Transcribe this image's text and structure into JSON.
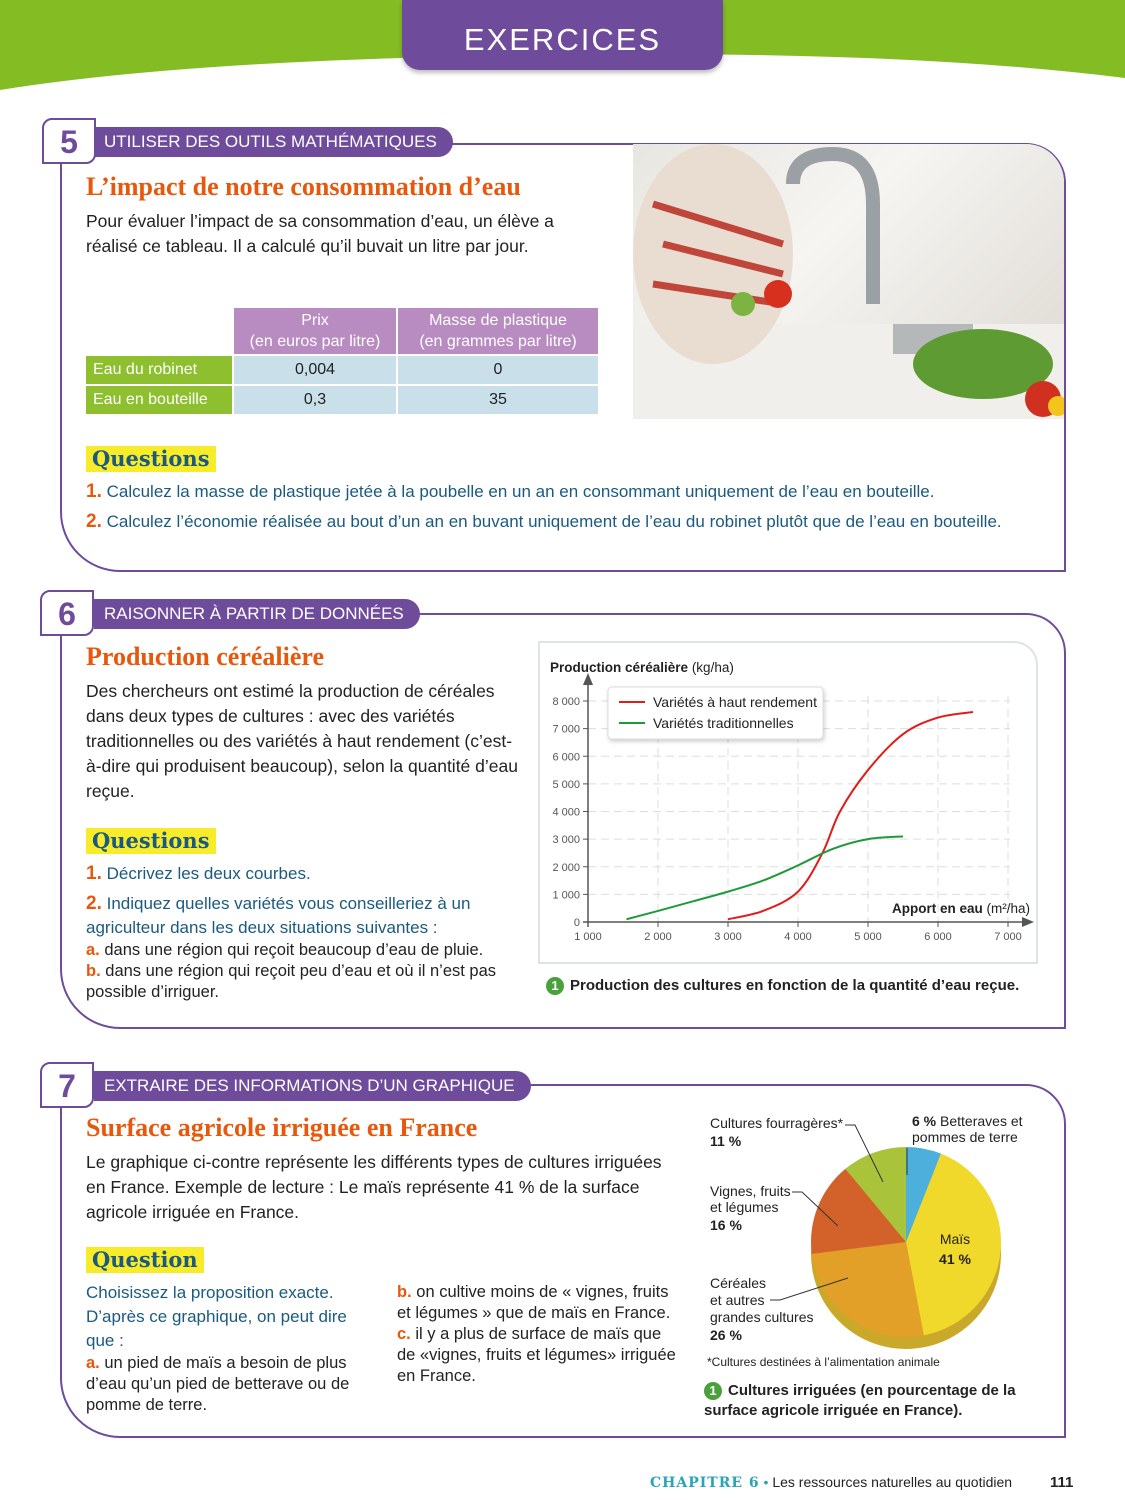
{
  "header": {
    "tab": "EXERCICES",
    "band_color": "#84bc24",
    "accent": "#6f4b9c"
  },
  "ex5": {
    "number": "5",
    "category": "UTILISER DES OUTILS MATHÉMATIQUES",
    "title": "L’impact de notre consommation d’eau",
    "intro": "Pour évaluer l’impact de sa consommation d’eau, un élève a réalisé ce tableau. Il a calculé qu’il buvait un litre par jour.",
    "table": {
      "headers": [
        "Prix\n(en euros par litre)",
        "Masse de plastique\n(en grammes par litre)"
      ],
      "rows": [
        {
          "label": "Eau du robinet",
          "values": [
            "0,004",
            "0"
          ]
        },
        {
          "label": "Eau en bouteille",
          "values": [
            "0,3",
            "35"
          ]
        }
      ]
    },
    "questions_label": "Questions",
    "questions": [
      {
        "n": "1.",
        "text": "Calculez la masse de plastique jetée à la poubelle en un an en consommant uniquement de l’eau en bouteille."
      },
      {
        "n": "2.",
        "text": "Calculez l’économie réalisée au bout d’un an en buvant uniquement de l’eau du robinet plutôt que de l’eau en bouteille."
      }
    ]
  },
  "ex6": {
    "number": "6",
    "category": "RAISONNER À PARTIR DE DONNÉES",
    "title": "Production céréalière",
    "intro": "Des chercheurs ont estimé la production de céréales dans deux types de cultures : avec des variétés traditionnelles ou des variétés à haut rendement (c’est-à-dire qui produisent beaucoup), selon la quantité d’eau reçue.",
    "questions_label": "Questions",
    "q1": {
      "n": "1.",
      "text": "Décrivez les deux courbes."
    },
    "q2": {
      "n": "2.",
      "text": "Indiquez quelles variétés vous conseilleriez à un agriculteur dans les deux situations suivantes :"
    },
    "qa": {
      "n": "a.",
      "text": "dans une région qui reçoit beaucoup d’eau de pluie."
    },
    "qb": {
      "n": "b.",
      "text": "dans une région qui reçoit peu d’eau et où il n’est pas possible d’irriguer."
    },
    "caption_num": "1",
    "caption": "Production des cultures en fonction de la quantité d’eau reçue.",
    "chart_data": {
      "type": "line",
      "ylabel_bold": "Production céréalière",
      "ylabel_unit": "(kg/ha)",
      "xlabel_bold": "Apport en eau",
      "xlabel_unit": "(m²/ha)",
      "xlim": [
        1000,
        7000
      ],
      "ylim": [
        0,
        8000
      ],
      "grid": true,
      "legend": "top-left",
      "x_ticks": [
        "1 000",
        "2 000",
        "3 000",
        "4 000",
        "5 000",
        "6 000",
        "7 000"
      ],
      "y_ticks": [
        "0",
        "1 000",
        "2 000",
        "3 000",
        "4 000",
        "5 000",
        "6 000",
        "7 000",
        "8 000"
      ],
      "series": [
        {
          "name": "Variétés à haut rendement",
          "color": "#e31a1a",
          "points": [
            [
              3000,
              100
            ],
            [
              3500,
              400
            ],
            [
              4000,
              1100
            ],
            [
              4350,
              2500
            ],
            [
              4600,
              4000
            ],
            [
              5000,
              5500
            ],
            [
              5500,
              6800
            ],
            [
              6000,
              7400
            ],
            [
              6500,
              7600
            ]
          ]
        },
        {
          "name": "Variétés traditionnelles",
          "color": "#1f9a3a",
          "points": [
            [
              1550,
              100
            ],
            [
              2000,
              400
            ],
            [
              2500,
              750
            ],
            [
              3000,
              1100
            ],
            [
              3500,
              1500
            ],
            [
              4000,
              2050
            ],
            [
              4500,
              2650
            ],
            [
              5000,
              3000
            ],
            [
              5500,
              3100
            ]
          ]
        }
      ]
    }
  },
  "ex7": {
    "number": "7",
    "category": "EXTRAIRE DES INFORMATIONS D’UN GRAPHIQUE",
    "title": "Surface agricole irriguée en France",
    "intro": "Le graphique ci-contre représente les différents types de cultures irriguées en France. Exemple de lecture : Le maïs représente 41 % de la surface agricole irriguée en France.",
    "question_label": "Question",
    "prompt": "Choisissez la proposition exacte. D’après ce graphique, on peut dire que :",
    "a": {
      "n": "a.",
      "text": "un pied de maïs a besoin de plus d’eau qu’un pied de betterave ou de pomme de terre."
    },
    "b": {
      "n": "b.",
      "text": "on cultive moins de «  vignes, fruits et légumes  » que de maïs en France."
    },
    "c": {
      "n": "c.",
      "text": "il y a plus de surface de maïs que de «vignes, fruits et légumes» irriguée en France."
    },
    "footnote": "*Cultures destinées à l’alimentation animale",
    "caption_num": "1",
    "caption": "Cultures irriguées (en pourcentage de la surface agricole irriguée en France).",
    "chart_data": {
      "type": "pie",
      "slices": [
        {
          "label": "Betteraves et pommes de terre",
          "value": 6,
          "pct": "6 %",
          "color": "#4db0dc"
        },
        {
          "label": "Maïs",
          "value": 41,
          "pct": "41 %",
          "color": "#f1d92c"
        },
        {
          "label": "Céréales et autres grandes cultures",
          "value": 26,
          "pct": "26 %",
          "color": "#e3a028"
        },
        {
          "label": "Vignes, fruits et légumes",
          "value": 16,
          "pct": "16 %",
          "color": "#d2622a"
        },
        {
          "label": "Cultures fourragères*",
          "value": 11,
          "pct": "11 %",
          "color": "#a9c43a"
        }
      ]
    }
  },
  "footer": {
    "chapter": "CHAPITRE 6",
    "bullet": "•",
    "title": "Les ressources naturelles au quotidien",
    "page": "111"
  }
}
